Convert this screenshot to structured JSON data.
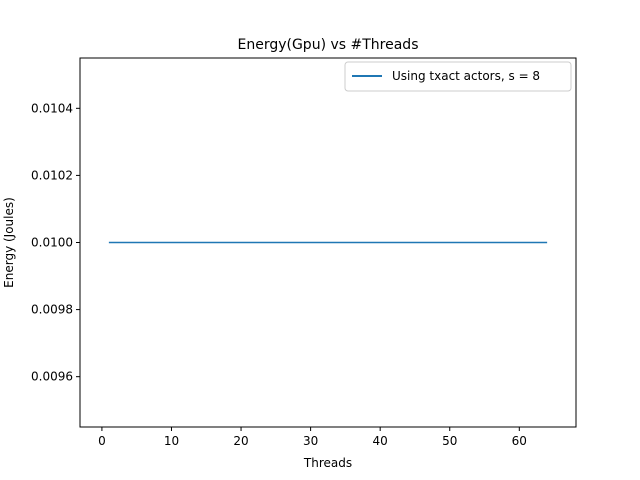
{
  "chart_data": {
    "type": "line",
    "title": "Energy(Gpu) vs #Threads",
    "xlabel": "Threads",
    "ylabel": "Energy (Joules)",
    "xlim": [
      -3.15,
      68.15
    ],
    "ylim": [
      0.00945,
      0.01055
    ],
    "xticks": [
      0,
      10,
      20,
      30,
      40,
      50,
      60
    ],
    "xtick_labels": [
      "0",
      "10",
      "20",
      "30",
      "40",
      "50",
      "60"
    ],
    "yticks": [
      0.0096,
      0.0098,
      0.01,
      0.0102,
      0.0104
    ],
    "ytick_labels": [
      "0.0096",
      "0.0098",
      "0.0100",
      "0.0102",
      "0.0104"
    ],
    "grid": false,
    "legend_position": "upper right",
    "series": [
      {
        "name": "Using txact actors, s = 8",
        "color": "#1f77b4",
        "x": [
          1,
          64
        ],
        "y": [
          0.01,
          0.01
        ]
      }
    ]
  }
}
